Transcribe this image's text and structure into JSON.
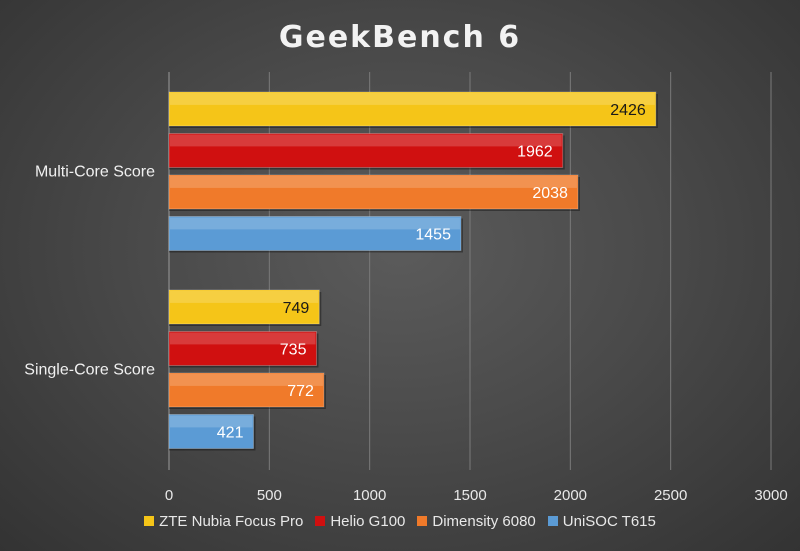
{
  "chart_data": {
    "type": "bar",
    "orientation": "horizontal",
    "title": "GeekBench 6",
    "categories": [
      "Multi-Core Score",
      "Single-Core Score"
    ],
    "series": [
      {
        "name": "ZTE Nubia Focus Pro",
        "values": [
          2426,
          749
        ],
        "color": "#f5c518"
      },
      {
        "name": "Helio G100",
        "values": [
          1962,
          735
        ],
        "color": "#d01010"
      },
      {
        "name": "Dimensity 6080",
        "values": [
          2038,
          772
        ],
        "color": "#f07a2a"
      },
      {
        "name": "UniSOC T615",
        "values": [
          1455,
          421
        ],
        "color": "#5b9bd5"
      }
    ],
    "label_colors": [
      "#1a1a1a",
      "#ffffff",
      "#ffffff",
      "#ffffff"
    ],
    "xlim": [
      0,
      3000
    ],
    "xticks": [
      "0",
      "500",
      "1000",
      "1500",
      "2000",
      "2500",
      "3000"
    ],
    "grid": true,
    "legend": "bottom"
  }
}
